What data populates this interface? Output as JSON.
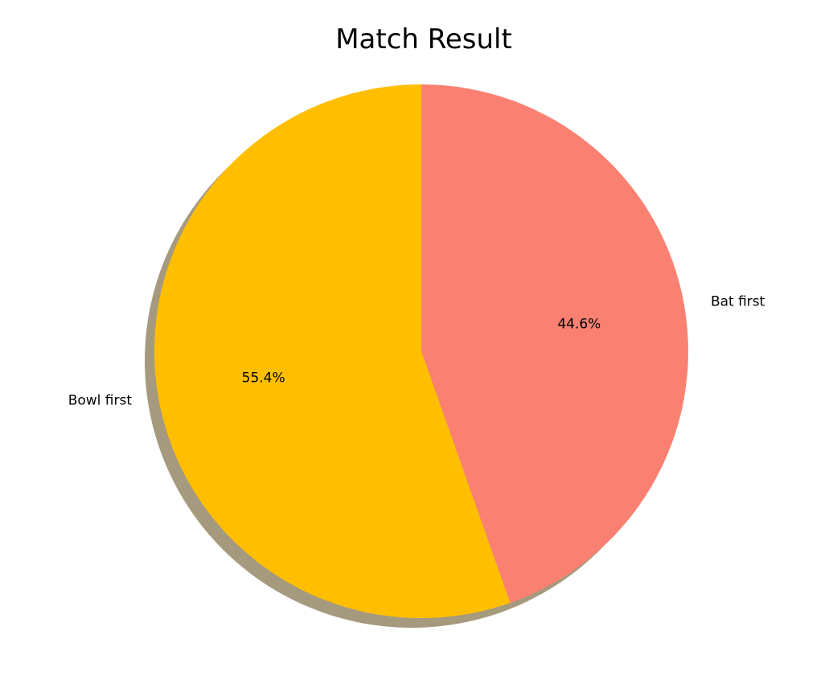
{
  "chart_data": {
    "type": "pie",
    "title": "Match Result",
    "slices": [
      {
        "label": "Bat first",
        "value": 44.6,
        "pct_label": "44.6%",
        "color": "#fa8072"
      },
      {
        "label": "Bowl first",
        "value": 55.4,
        "pct_label": "55.4%",
        "color": "#ffbf00"
      }
    ],
    "start_angle_deg": 90,
    "direction": "clockwise",
    "shadow": true,
    "shadow_color": "#a69a7e"
  }
}
